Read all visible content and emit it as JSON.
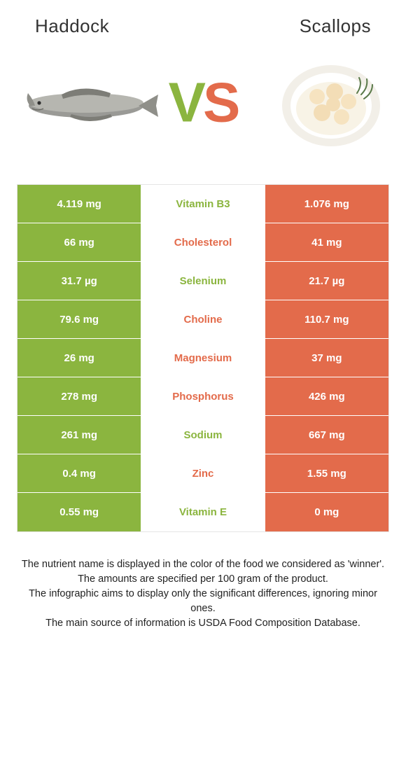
{
  "colors": {
    "left": "#8bb53f",
    "right": "#e36b4b",
    "mid_bg": "#ffffff",
    "cell_text": "#ffffff",
    "title_text": "#333333",
    "footer_text": "#222222",
    "border": "#e5e5e5"
  },
  "header": {
    "left": "Haddock",
    "right": "Scallops"
  },
  "vs": {
    "v": "V",
    "s": "S"
  },
  "rows": [
    {
      "left": "4.119 mg",
      "label": "Vitamin B3",
      "right": "1.076 mg",
      "winner": "left"
    },
    {
      "left": "66 mg",
      "label": "Cholesterol",
      "right": "41 mg",
      "winner": "right"
    },
    {
      "left": "31.7 µg",
      "label": "Selenium",
      "right": "21.7 µg",
      "winner": "left"
    },
    {
      "left": "79.6 mg",
      "label": "Choline",
      "right": "110.7 mg",
      "winner": "right"
    },
    {
      "left": "26 mg",
      "label": "Magnesium",
      "right": "37 mg",
      "winner": "right"
    },
    {
      "left": "278 mg",
      "label": "Phosphorus",
      "right": "426 mg",
      "winner": "right"
    },
    {
      "left": "261 mg",
      "label": "Sodium",
      "right": "667 mg",
      "winner": "left"
    },
    {
      "left": "0.4 mg",
      "label": "Zinc",
      "right": "1.55 mg",
      "winner": "right"
    },
    {
      "left": "0.55 mg",
      "label": "Vitamin E",
      "right": "0 mg",
      "winner": "left"
    }
  ],
  "footer": {
    "l1": "The nutrient name is displayed in the color of the food we considered as 'winner'.",
    "l2": "The amounts are specified per 100 gram of the product.",
    "l3": "The infographic aims to display only the significant differences, ignoring minor ones.",
    "l4": "The main source of information is USDA Food Composition Database."
  }
}
